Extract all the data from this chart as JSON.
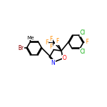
{
  "bg_color": "#ffffff",
  "bond_color": "#000000",
  "atom_colors": {
    "C": "#000000",
    "N": "#0000ff",
    "O": "#ff0000",
    "F": "#ff8c00",
    "Cl": "#00aa00",
    "Br": "#8b0000",
    "H": "#000000"
  },
  "figsize": [
    1.52,
    1.52
  ],
  "dpi": 100
}
